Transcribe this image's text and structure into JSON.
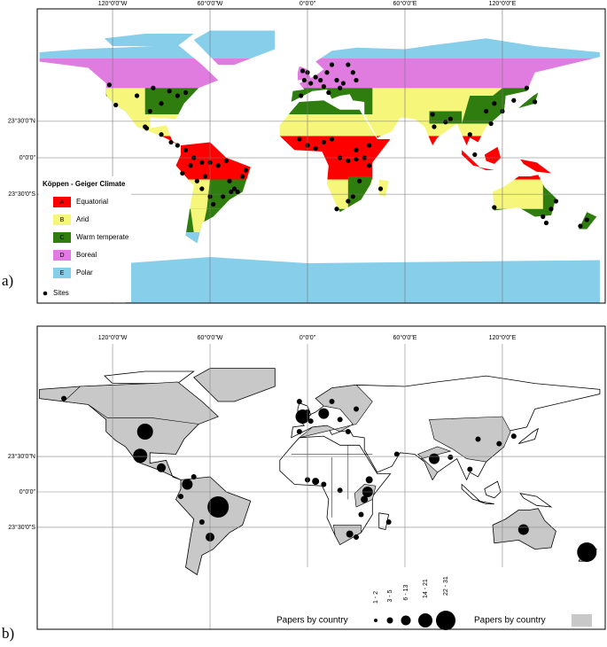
{
  "panels": [
    {
      "label": "a)",
      "graticule": {
        "top": [
          "120°0'0\"W",
          "60°0'0\"W",
          "0°0'0\"",
          "60°0'0\"E",
          "120°0'0\"E"
        ],
        "left": [
          "23°30'0\"N",
          "0°0'0\"",
          "23°30'0\"S"
        ]
      },
      "legend": {
        "title": "Köppen - Geiger Climate",
        "items": [
          {
            "code": "A",
            "name": "Equatorial"
          },
          {
            "code": "B",
            "name": "Arid"
          },
          {
            "code": "C",
            "name": "Warm temperate"
          },
          {
            "code": "D",
            "name": "Boreal"
          },
          {
            "code": "E",
            "name": "Polar"
          }
        ],
        "sites": "Sites"
      }
    },
    {
      "label": "b)",
      "graticule": {
        "top": [
          "120°0'0\"W",
          "60°0'0\"W",
          "0°0'0\"",
          "60°0'0\"E",
          "120°0'0\"E"
        ],
        "left": [
          "23°30'0\"N",
          "0°0'0\"",
          "23°30'0\"S"
        ]
      },
      "legend": {
        "size_classes": [
          "1 - 2",
          "3 - 5",
          "6 - 13",
          "14 - 21",
          "22 - 31"
        ],
        "size_title": "Papers by country",
        "fill_title": "Papers by country"
      }
    }
  ]
}
